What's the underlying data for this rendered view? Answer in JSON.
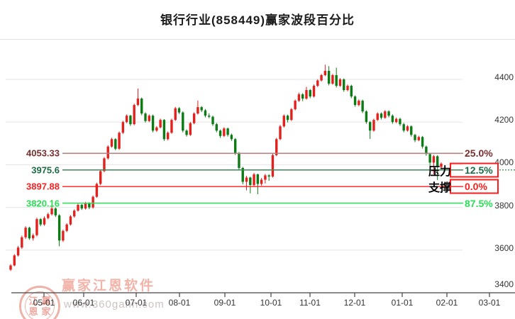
{
  "title": "银行行业(858449)赢家波段百分比",
  "watermark": {
    "logo_chars": [
      "江",
      "赢",
      "恩",
      "家"
    ],
    "brand": "赢家江恩软件",
    "url": "www.360gann.com"
  },
  "chart_data": {
    "type": "candlestick",
    "title": "银行行业(858449)赢家波段百分比",
    "legend_position": "none",
    "grid": "horizontal",
    "colors": {
      "up_candle": "#e2201c",
      "down_candle": "#0c7b14",
      "grid_line": "#e5e5e5",
      "axis_line": "#444444",
      "tick_text": "#333333",
      "box_border": "#fd1d1d"
    },
    "y_axis": {
      "ticks": [
        4400,
        4200,
        4000,
        3800,
        3600,
        3400
      ],
      "range": [
        3400,
        4520
      ],
      "side": "right"
    },
    "x_axis": {
      "ticks": [
        "05-01",
        "06-01",
        "07-01",
        "08-01",
        "09-01",
        "10-01",
        "11-01",
        "12-01",
        "01-01",
        "02-01",
        "03-01"
      ]
    },
    "levels": [
      {
        "value": 4053.33,
        "label": "4053.33",
        "pct": "25.0%",
        "line_color": "#b08484",
        "label_color": "#792f2f",
        "boxed": false,
        "dotted_right": false
      },
      {
        "value": 3975.6,
        "label": "3975.6",
        "pct": "12.5%",
        "line_color": "#3a8a55",
        "label_color": "#1c6b44",
        "boxed": true,
        "dotted_right": true
      },
      {
        "value": 3897.88,
        "label": "3897.88",
        "pct": "0.0%",
        "line_color": "#fe1e1e",
        "label_color": "#fa2020",
        "boxed": true,
        "dotted_right": false
      },
      {
        "value": 3820.16,
        "label": "3820.16",
        "pct": "87.5%",
        "line_color": "#30e05e",
        "label_color": "#28df55",
        "boxed": false,
        "dotted_right": false
      }
    ],
    "annotations": {
      "pressure": "压力",
      "support": "支撑"
    },
    "candles": [
      [
        3508,
        3534,
        3502,
        3528
      ],
      [
        3528,
        3581,
        3524,
        3575
      ],
      [
        3575,
        3620,
        3570,
        3612
      ],
      [
        3612,
        3668,
        3606,
        3660
      ],
      [
        3660,
        3712,
        3652,
        3705
      ],
      [
        3705,
        3710,
        3648,
        3655
      ],
      [
        3655,
        3678,
        3645,
        3670
      ],
      [
        3670,
        3752,
        3664,
        3745
      ],
      [
        3745,
        3750,
        3712,
        3720
      ],
      [
        3720,
        3758,
        3714,
        3750
      ],
      [
        3750,
        3775,
        3744,
        3768
      ],
      [
        3768,
        3835,
        3762,
        3795
      ],
      [
        3795,
        3800,
        3755,
        3763
      ],
      [
        3763,
        3768,
        3618,
        3645
      ],
      [
        3645,
        3696,
        3638,
        3690
      ],
      [
        3690,
        3726,
        3684,
        3720
      ],
      [
        3720,
        3764,
        3715,
        3758
      ],
      [
        3758,
        3791,
        3752,
        3785
      ],
      [
        3785,
        3818,
        3780,
        3812
      ],
      [
        3812,
        3816,
        3788,
        3795
      ],
      [
        3795,
        3826,
        3790,
        3820
      ],
      [
        3820,
        3824,
        3792,
        3800
      ],
      [
        3800,
        3856,
        3794,
        3850
      ],
      [
        3850,
        3916,
        3845,
        3910
      ],
      [
        3910,
        3976,
        3904,
        3970
      ],
      [
        3970,
        4036,
        3965,
        4030
      ],
      [
        4030,
        4091,
        4024,
        4085
      ],
      [
        4085,
        4126,
        4080,
        4120
      ],
      [
        4120,
        4124,
        4068,
        4075
      ],
      [
        4075,
        4156,
        4070,
        4150
      ],
      [
        4150,
        4206,
        4144,
        4200
      ],
      [
        4200,
        4236,
        4195,
        4230
      ],
      [
        4230,
        4234,
        4182,
        4190
      ],
      [
        4190,
        4286,
        4185,
        4280
      ],
      [
        4280,
        4357,
        4275,
        4310
      ],
      [
        4310,
        4315,
        4232,
        4240
      ],
      [
        4240,
        4246,
        4198,
        4205
      ],
      [
        4205,
        4236,
        4200,
        4230
      ],
      [
        4230,
        4235,
        4152,
        4160
      ],
      [
        4160,
        4181,
        4154,
        4175
      ],
      [
        4175,
        4216,
        4170,
        4210
      ],
      [
        4210,
        4214,
        4112,
        4120
      ],
      [
        4120,
        4156,
        4114,
        4150
      ],
      [
        4150,
        4216,
        4145,
        4210
      ],
      [
        4210,
        4271,
        4205,
        4265
      ],
      [
        4265,
        4270,
        4238,
        4245
      ],
      [
        4245,
        4250,
        4152,
        4160
      ],
      [
        4160,
        4166,
        4132,
        4140
      ],
      [
        4140,
        4201,
        4135,
        4195
      ],
      [
        4195,
        4246,
        4190,
        4240
      ],
      [
        4240,
        4301,
        4235,
        4270
      ],
      [
        4270,
        4275,
        4247,
        4255
      ],
      [
        4255,
        4261,
        4222,
        4230
      ],
      [
        4230,
        4241,
        4218,
        4225
      ],
      [
        4225,
        4230,
        4182,
        4190
      ],
      [
        4190,
        4196,
        4152,
        4160
      ],
      [
        4160,
        4165,
        4126,
        4135
      ],
      [
        4135,
        4176,
        4130,
        4170
      ],
      [
        4170,
        4174,
        4132,
        4140
      ],
      [
        4140,
        4146,
        4112,
        4120
      ],
      [
        4120,
        4125,
        4046,
        4055
      ],
      [
        4055,
        4060,
        3976,
        3985
      ],
      [
        3985,
        3990,
        3908,
        3920
      ],
      [
        3920,
        3948,
        3880,
        3940
      ],
      [
        3940,
        3944,
        3866,
        3905
      ],
      [
        3905,
        3962,
        3898,
        3955
      ],
      [
        3955,
        3958,
        3862,
        3910
      ],
      [
        3910,
        3938,
        3902,
        3930
      ],
      [
        3930,
        3957,
        3912,
        3950
      ],
      [
        3950,
        3956,
        3925,
        3945
      ],
      [
        3945,
        4052,
        3940,
        4045
      ],
      [
        4045,
        4126,
        4040,
        4120
      ],
      [
        4120,
        4187,
        4115,
        4180
      ],
      [
        4180,
        4236,
        4174,
        4230
      ],
      [
        4230,
        4235,
        4198,
        4210
      ],
      [
        4210,
        4266,
        4205,
        4260
      ],
      [
        4260,
        4306,
        4255,
        4300
      ],
      [
        4300,
        4338,
        4294,
        4330
      ],
      [
        4330,
        4336,
        4298,
        4310
      ],
      [
        4310,
        4365,
        4305,
        4350
      ],
      [
        4350,
        4355,
        4312,
        4320
      ],
      [
        4320,
        4376,
        4315,
        4370
      ],
      [
        4370,
        4401,
        4364,
        4395
      ],
      [
        4395,
        4426,
        4390,
        4420
      ],
      [
        4420,
        4469,
        4415,
        4440
      ],
      [
        4440,
        4462,
        4372,
        4380
      ],
      [
        4380,
        4426,
        4375,
        4420
      ],
      [
        4420,
        4455,
        4362,
        4370
      ],
      [
        4370,
        4406,
        4365,
        4400
      ],
      [
        4400,
        4405,
        4342,
        4350
      ],
      [
        4350,
        4376,
        4344,
        4370
      ],
      [
        4370,
        4375,
        4312,
        4320
      ],
      [
        4320,
        4325,
        4272,
        4280
      ],
      [
        4280,
        4306,
        4274,
        4300
      ],
      [
        4300,
        4305,
        4242,
        4250
      ],
      [
        4250,
        4255,
        4192,
        4200
      ],
      [
        4200,
        4205,
        4121,
        4160
      ],
      [
        4160,
        4216,
        4155,
        4210
      ],
      [
        4210,
        4246,
        4205,
        4240
      ],
      [
        4240,
        4245,
        4212,
        4220
      ],
      [
        4220,
        4256,
        4215,
        4250
      ],
      [
        4250,
        4255,
        4222,
        4230
      ],
      [
        4230,
        4236,
        4192,
        4200
      ],
      [
        4200,
        4221,
        4195,
        4215
      ],
      [
        4215,
        4220,
        4182,
        4190
      ],
      [
        4190,
        4196,
        4152,
        4160
      ],
      [
        4160,
        4186,
        4155,
        4180
      ],
      [
        4180,
        4185,
        4132,
        4140
      ],
      [
        4140,
        4145,
        4106,
        4115
      ],
      [
        4115,
        4136,
        4110,
        4130
      ],
      [
        4130,
        4135,
        4076,
        4085
      ],
      [
        4085,
        4090,
        4042,
        4050
      ],
      [
        4050,
        4056,
        3992,
        4010
      ],
      [
        4010,
        4046,
        3955,
        4040
      ],
      [
        4040,
        4045,
        3928,
        3990
      ],
      [
        3990,
        4011,
        3984,
        4005
      ]
    ]
  }
}
